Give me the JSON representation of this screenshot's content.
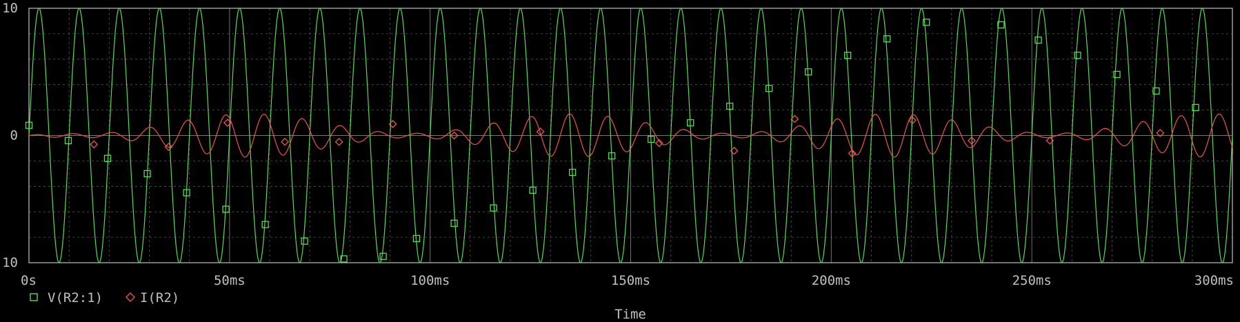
{
  "colors": {
    "background": "#000000",
    "axis": "#c0c0c0",
    "grid": "#a0a0a0",
    "v_trace": "#55dd55",
    "i_trace": "#ee5555",
    "text": "#c0c0c0"
  },
  "chart_data": {
    "type": "line",
    "xlabel": "Time",
    "ylabel": "",
    "xlim_ms": [
      0,
      300
    ],
    "ylim": [
      -10,
      10
    ],
    "x_ticks": [
      "0s",
      "50ms",
      "100ms",
      "150ms",
      "200ms",
      "250ms",
      "300ms"
    ],
    "x_tick_values_ms": [
      0,
      50,
      100,
      150,
      200,
      250,
      300
    ],
    "y_ticks": [
      "10",
      "0",
      "10"
    ],
    "y_tick_values": [
      10,
      0,
      -10
    ],
    "legend_position": "bottom-left",
    "series": [
      {
        "name": "V(R2:1)",
        "marker": "square",
        "color": "#55dd55",
        "amplitude": 10,
        "frequency_hz": 100,
        "marker_points": [
          {
            "t_ms": 0,
            "v": 0.8
          },
          {
            "t_ms": 9.8,
            "v": -0.4
          },
          {
            "t_ms": 19.6,
            "v": -1.8
          },
          {
            "t_ms": 29.5,
            "v": -3.0
          },
          {
            "t_ms": 39.3,
            "v": -4.5
          },
          {
            "t_ms": 49.1,
            "v": -5.8
          },
          {
            "t_ms": 58.9,
            "v": -7.0
          },
          {
            "t_ms": 68.7,
            "v": -8.3
          },
          {
            "t_ms": 78.5,
            "v": -9.7
          },
          {
            "t_ms": 88.3,
            "v": -9.5
          },
          {
            "t_ms": 96.6,
            "v": -8.1
          },
          {
            "t_ms": 106.0,
            "v": -6.9
          },
          {
            "t_ms": 115.8,
            "v": -5.7
          },
          {
            "t_ms": 125.6,
            "v": -4.3
          },
          {
            "t_ms": 135.5,
            "v": -2.9
          },
          {
            "t_ms": 145.3,
            "v": -1.6
          },
          {
            "t_ms": 155.1,
            "v": -0.3
          },
          {
            "t_ms": 164.9,
            "v": 1.0
          },
          {
            "t_ms": 174.7,
            "v": 2.3
          },
          {
            "t_ms": 184.5,
            "v": 3.7
          },
          {
            "t_ms": 194.3,
            "v": 5.0
          },
          {
            "t_ms": 204.1,
            "v": 6.3
          },
          {
            "t_ms": 213.9,
            "v": 7.6
          },
          {
            "t_ms": 223.7,
            "v": 8.9
          },
          {
            "t_ms": 242.3,
            "v": 8.7
          },
          {
            "t_ms": 251.6,
            "v": 7.5
          },
          {
            "t_ms": 261.4,
            "v": 6.3
          },
          {
            "t_ms": 271.2,
            "v": 4.8
          },
          {
            "t_ms": 281.0,
            "v": 3.5
          },
          {
            "t_ms": 290.8,
            "v": 2.2
          }
        ]
      },
      {
        "name": "I(R2)",
        "marker": "diamond",
        "color": "#ee5555",
        "amplitude_envelope_max": 1.7,
        "frequency_hz": 105,
        "marker_points": [
          {
            "t_ms": 16.2,
            "v": -0.7
          },
          {
            "t_ms": 34.8,
            "v": -0.9
          },
          {
            "t_ms": 49.5,
            "v": 1.0
          },
          {
            "t_ms": 63.8,
            "v": -0.5
          },
          {
            "t_ms": 77.3,
            "v": -0.5
          },
          {
            "t_ms": 90.7,
            "v": 0.9
          },
          {
            "t_ms": 106.0,
            "v": 0.0
          },
          {
            "t_ms": 127.5,
            "v": 0.3
          },
          {
            "t_ms": 157.1,
            "v": -0.6
          },
          {
            "t_ms": 175.8,
            "v": -1.2
          },
          {
            "t_ms": 190.9,
            "v": 1.3
          },
          {
            "t_ms": 205.2,
            "v": -1.4
          },
          {
            "t_ms": 220.2,
            "v": 1.2
          },
          {
            "t_ms": 235.0,
            "v": -0.4
          },
          {
            "t_ms": 254.5,
            "v": -0.4
          },
          {
            "t_ms": 282.0,
            "v": 0.2
          }
        ]
      }
    ]
  }
}
